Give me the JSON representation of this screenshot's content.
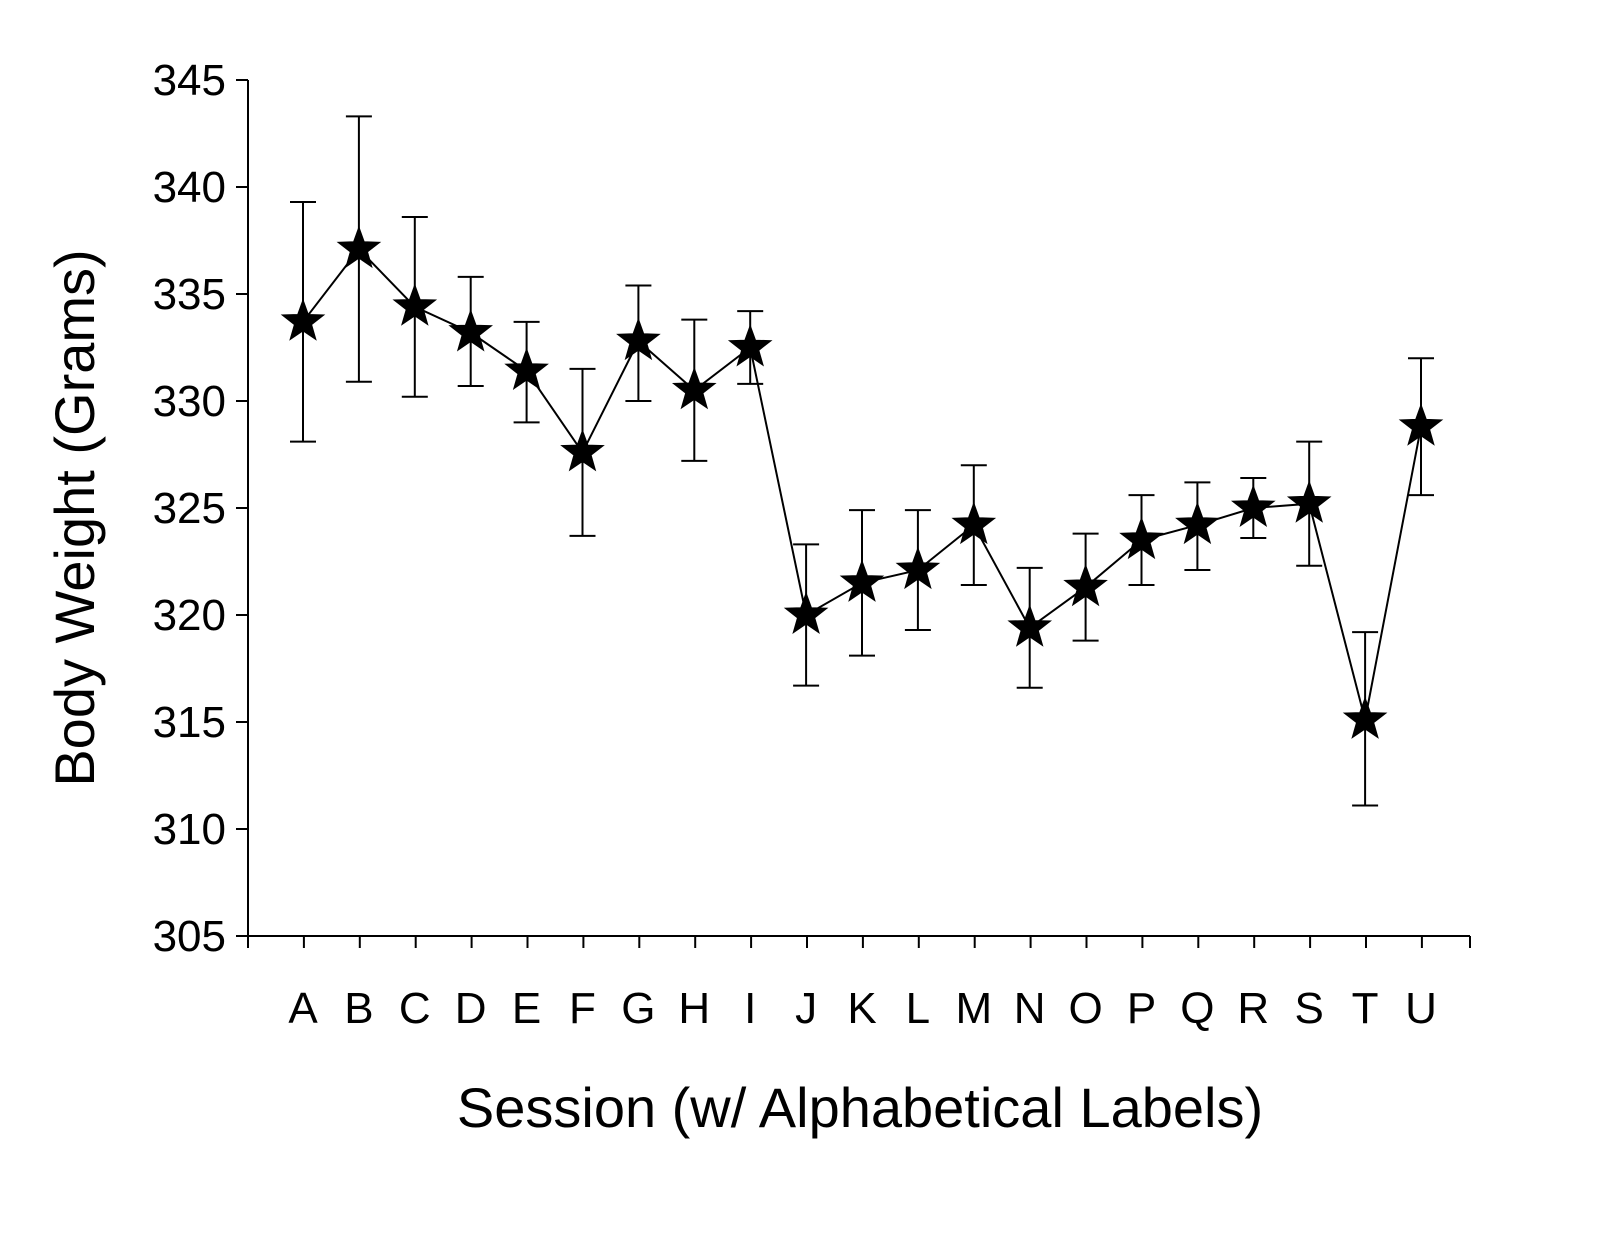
{
  "chart_data": {
    "type": "line",
    "xlabel": "Session (w/ Alphabetical Labels)",
    "ylabel": "Body Weight (Grams)",
    "ylim": [
      305,
      345
    ],
    "yticks": [
      305,
      310,
      315,
      320,
      325,
      330,
      335,
      340,
      345
    ],
    "categories": [
      "A",
      "B",
      "C",
      "D",
      "E",
      "F",
      "G",
      "H",
      "I",
      "J",
      "K",
      "L",
      "M",
      "N",
      "O",
      "P",
      "Q",
      "R",
      "S",
      "T",
      "U"
    ],
    "marker": "star",
    "grid": false,
    "legend": "none",
    "series": [
      {
        "values": [
          333.7,
          337.1,
          334.4,
          333.2,
          331.4,
          327.6,
          332.8,
          330.5,
          332.5,
          320.0,
          321.5,
          322.1,
          324.2,
          319.4,
          321.3,
          323.5,
          324.2,
          325.0,
          325.2,
          315.1,
          328.8
        ],
        "err_low": [
          328.1,
          330.9,
          330.2,
          330.7,
          329.0,
          323.7,
          330.0,
          327.2,
          330.8,
          316.7,
          318.1,
          319.3,
          321.4,
          316.6,
          318.8,
          321.4,
          322.1,
          323.6,
          322.3,
          311.1,
          325.6
        ],
        "err_high": [
          339.3,
          343.3,
          338.6,
          335.8,
          333.7,
          331.5,
          335.4,
          333.8,
          334.2,
          323.3,
          324.9,
          324.9,
          327.0,
          322.2,
          323.8,
          325.6,
          326.2,
          326.4,
          328.1,
          319.2,
          332.0
        ]
      }
    ],
    "colors": {
      "line": "#000000",
      "marker": "#000000",
      "axis": "#000000"
    }
  }
}
